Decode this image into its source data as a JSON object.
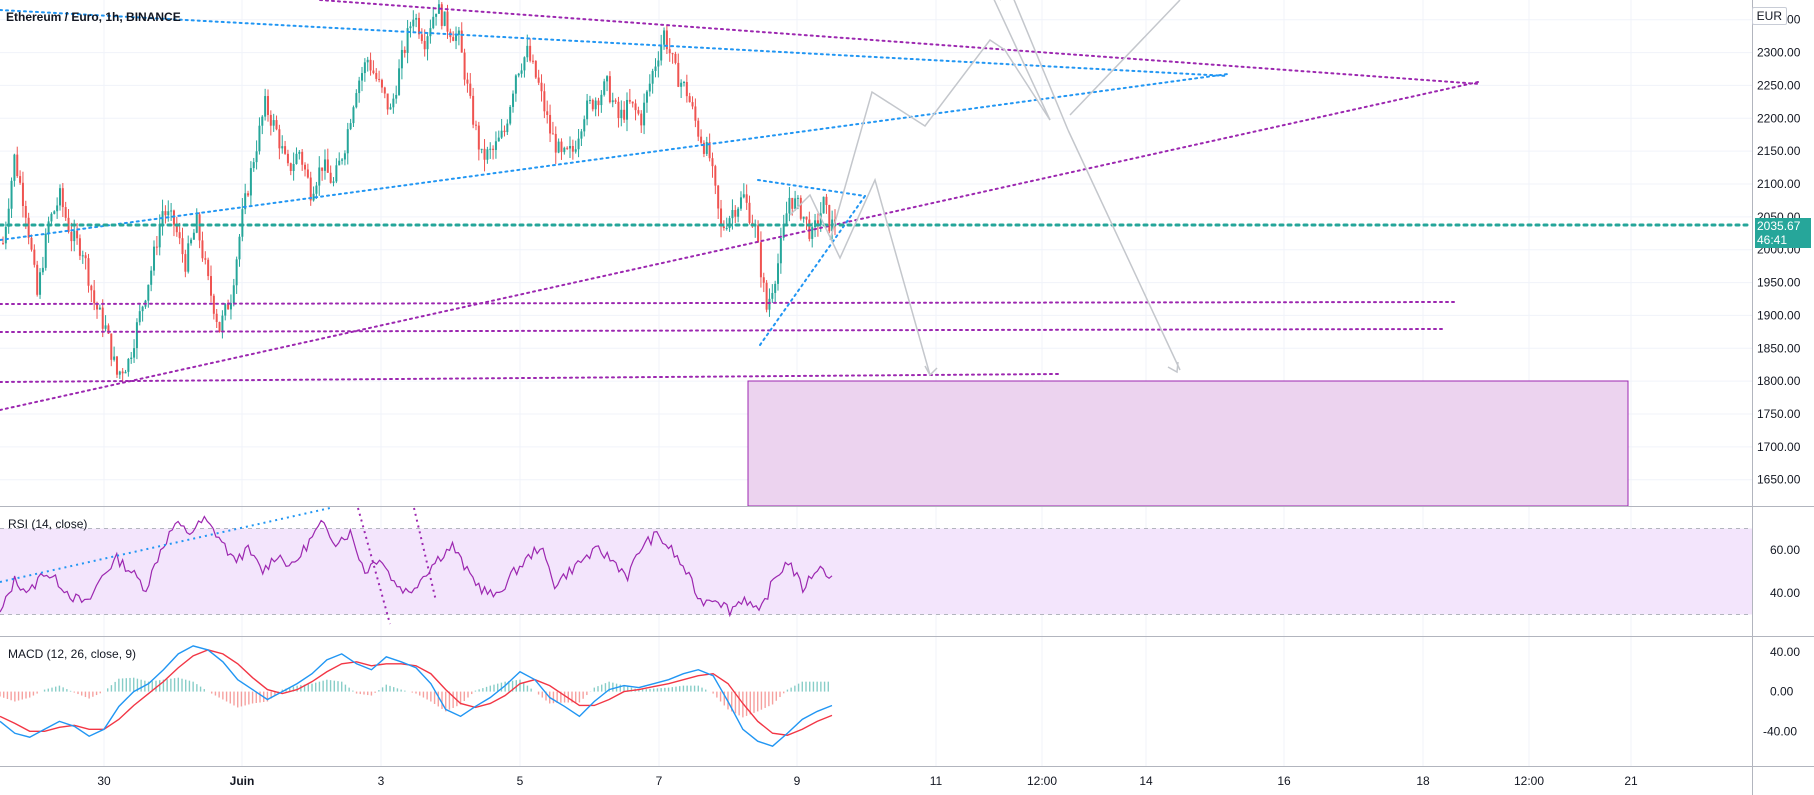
{
  "header": {
    "symbol_title": "Ethereum / Euro, 1h, BINANCE",
    "currency": "EUR"
  },
  "price_tag": {
    "price": "2035.67",
    "countdown": "46:41",
    "color": "#26a69a"
  },
  "colors": {
    "up": "#26a69a",
    "down": "#ef5350",
    "purple_line": "#9c27b0",
    "blue_line": "#2196f3",
    "zone_fill": "#e9d1ee",
    "rsi_band": "#f3e5fc",
    "macd_line": "#2196f3",
    "signal_line": "#f23645"
  },
  "chart_data": [
    {
      "type": "candlestick",
      "title": "Ethereum / Euro, 1h, BINANCE",
      "y_ticks": [
        "2350.00",
        "2300.00",
        "2250.00",
        "2200.00",
        "2150.00",
        "2100.00",
        "2050.00",
        "2000.00",
        "1950.00",
        "1900.00",
        "1850.00",
        "1800.00",
        "1750.00",
        "1700.00",
        "1650.00"
      ],
      "x_ticks": [
        "30",
        "Juin",
        "3",
        "5",
        "7",
        "9",
        "11",
        "12:00",
        "14",
        "16",
        "18",
        "12:00",
        "21"
      ],
      "ylim": [
        1610,
        2380
      ],
      "current_price": 2035.67,
      "path": [
        [
          0,
          2010
        ],
        [
          4,
          2140
        ],
        [
          8,
          2060
        ],
        [
          12,
          1930
        ],
        [
          16,
          2040
        ],
        [
          20,
          2080
        ],
        [
          24,
          2020
        ],
        [
          28,
          2000
        ],
        [
          32,
          1920
        ],
        [
          36,
          1880
        ],
        [
          40,
          1810
        ],
        [
          44,
          1830
        ],
        [
          48,
          1900
        ],
        [
          52,
          1970
        ],
        [
          56,
          2060
        ],
        [
          60,
          2040
        ],
        [
          64,
          1980
        ],
        [
          68,
          2040
        ],
        [
          72,
          1950
        ],
        [
          76,
          1880
        ],
        [
          80,
          1930
        ],
        [
          84,
          2050
        ],
        [
          88,
          2140
        ],
        [
          92,
          2220
        ],
        [
          96,
          2180
        ],
        [
          100,
          2120
        ],
        [
          104,
          2150
        ],
        [
          108,
          2090
        ],
        [
          112,
          2130
        ],
        [
          116,
          2100
        ],
        [
          120,
          2160
        ],
        [
          124,
          2250
        ],
        [
          128,
          2290
        ],
        [
          132,
          2250
        ],
        [
          136,
          2210
        ],
        [
          140,
          2290
        ],
        [
          144,
          2360
        ],
        [
          148,
          2320
        ],
        [
          152,
          2370
        ],
        [
          156,
          2340
        ],
        [
          160,
          2320
        ],
        [
          164,
          2220
        ],
        [
          168,
          2140
        ],
        [
          172,
          2150
        ],
        [
          176,
          2180
        ],
        [
          180,
          2270
        ],
        [
          184,
          2300
        ],
        [
          188,
          2250
        ],
        [
          192,
          2180
        ],
        [
          196,
          2140
        ],
        [
          200,
          2150
        ],
        [
          204,
          2210
        ],
        [
          208,
          2230
        ],
        [
          212,
          2250
        ],
        [
          216,
          2200
        ],
        [
          220,
          2220
        ],
        [
          224,
          2200
        ],
        [
          228,
          2270
        ],
        [
          232,
          2330
        ],
        [
          236,
          2270
        ],
        [
          240,
          2240
        ],
        [
          244,
          2180
        ],
        [
          248,
          2140
        ],
        [
          252,
          2030
        ],
        [
          256,
          2060
        ],
        [
          260,
          2080
        ],
        [
          264,
          2030
        ],
        [
          268,
          1910
        ],
        [
          272,
          1980
        ],
        [
          276,
          2080
        ],
        [
          280,
          2060
        ],
        [
          284,
          2020
        ],
        [
          288,
          2070
        ],
        [
          290,
          2040
        ],
        [
          292,
          2035.67
        ]
      ]
    },
    {
      "type": "line",
      "title": "RSI (14, close)",
      "y_ticks": [
        "60.00",
        "40.00"
      ],
      "ylim": [
        20,
        80
      ],
      "bands": [
        30,
        70
      ],
      "series": [
        {
          "name": "",
          "values": [
            30,
            46,
            40,
            50,
            45,
            38,
            35,
            48,
            56,
            50,
            42,
            60,
            72,
            68,
            74,
            66,
            55,
            60,
            50,
            58,
            52,
            62,
            72,
            64,
            68,
            50,
            57,
            45,
            40,
            48,
            56,
            62,
            50,
            42,
            38,
            48,
            55,
            62,
            44,
            50,
            56,
            60,
            55,
            48,
            62,
            67,
            60,
            50,
            36,
            38,
            32,
            38,
            30,
            46,
            55,
            42,
            52,
            48
          ]
        }
      ]
    },
    {
      "type": "bar",
      "title": "MACD (12, 26, close, 9)",
      "y_ticks": [
        "40.00",
        "0.00",
        "-40.00"
      ],
      "ylim": [
        -75,
        55
      ],
      "series": [
        {
          "name": "",
          "values": [
            -30,
            -42,
            -46,
            -38,
            -30,
            -35,
            -45,
            -38,
            -15,
            0,
            8,
            22,
            38,
            46,
            42,
            30,
            12,
            2,
            -8,
            0,
            8,
            18,
            32,
            38,
            28,
            22,
            35,
            30,
            24,
            8,
            -18,
            -25,
            -15,
            -6,
            6,
            20,
            12,
            -6,
            -15,
            -25,
            -10,
            2,
            6,
            4,
            8,
            12,
            18,
            22,
            16,
            -10,
            -38,
            -50,
            -55,
            -42,
            -28,
            -20,
            -14
          ]
        },
        {
          "name": "",
          "values": [
            -25,
            -32,
            -40,
            -40,
            -36,
            -34,
            -38,
            -38,
            -28,
            -14,
            -2,
            10,
            24,
            36,
            42,
            38,
            28,
            14,
            2,
            -2,
            2,
            10,
            20,
            28,
            30,
            26,
            28,
            28,
            26,
            18,
            2,
            -12,
            -16,
            -12,
            -4,
            8,
            12,
            6,
            -4,
            -14,
            -14,
            -8,
            0,
            2,
            5,
            8,
            12,
            16,
            18,
            8,
            -12,
            -30,
            -42,
            -44,
            -38,
            -30,
            -24
          ]
        },
        {
          "name": "",
          "values": [
            -5,
            -10,
            -6,
            2,
            6,
            -1,
            -7,
            0,
            13,
            14,
            10,
            12,
            14,
            10,
            0,
            -8,
            -16,
            -12,
            -10,
            2,
            6,
            8,
            12,
            10,
            -2,
            -4,
            7,
            2,
            -2,
            -10,
            -20,
            -13,
            1,
            6,
            10,
            12,
            0,
            -12,
            -11,
            -11,
            4,
            10,
            6,
            2,
            3,
            4,
            6,
            6,
            -2,
            -18,
            -26,
            -20,
            -13,
            2,
            10,
            10,
            10
          ]
        }
      ]
    }
  ]
}
